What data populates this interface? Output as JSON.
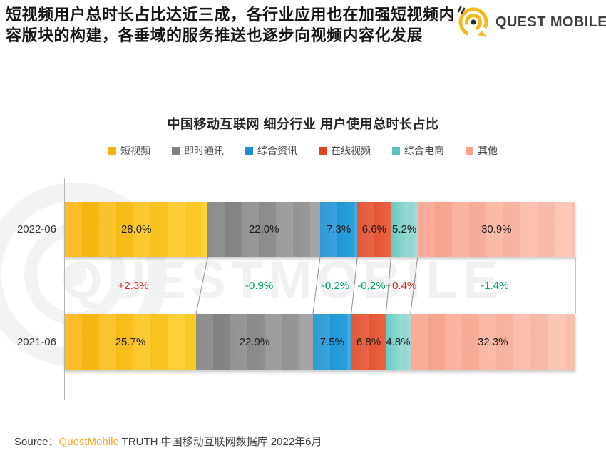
{
  "header": {
    "text": "短视频用户总时长占比达近三成，各行业应用也在加强短视频内容版块的构建，各垂域的服务推送也逐步向视频内容化发展",
    "logo_text": "QUEST MOBILE"
  },
  "chart_data": {
    "type": "bar",
    "stacked": true,
    "orientation": "horizontal",
    "title": "中国移动互联网 细分行业 用户使用总时长占比",
    "unit": "%",
    "xlim": [
      0,
      100
    ],
    "categories": [
      "2022-06",
      "2021-06"
    ],
    "legend": [
      {
        "label": "短视频",
        "color": "#f8b40e",
        "color2": "#ffce27"
      },
      {
        "label": "即时通讯",
        "color": "#7f7f7f",
        "color2": "#9c9c9c"
      },
      {
        "label": "综合资讯",
        "color": "#1a8fd1",
        "color2": "#2ba4e2"
      },
      {
        "label": "在线视频",
        "color": "#df4522",
        "color2": "#ef6545"
      },
      {
        "label": "综合电商",
        "color": "#55c4bb",
        "color2": "#abe0da"
      },
      {
        "label": "其他",
        "color": "#f9a28b",
        "color2": "#fdc3b1"
      }
    ],
    "series": [
      {
        "name": "2022-06",
        "values": [
          28.0,
          22.0,
          7.3,
          6.6,
          5.2,
          30.9
        ],
        "labels": [
          "28.0%",
          "22.0%",
          "7.3%",
          "6.6%",
          "5.2%",
          "30.9%"
        ]
      },
      {
        "name": "2021-06",
        "values": [
          25.7,
          22.9,
          7.5,
          6.8,
          4.8,
          32.3
        ],
        "labels": [
          "25.7%",
          "22.9%",
          "7.5%",
          "6.8%",
          "4.8%",
          "32.3%"
        ]
      }
    ],
    "changes": [
      {
        "label": "+2.3%",
        "direction": "up"
      },
      {
        "label": "-0.9%",
        "direction": "down"
      },
      {
        "label": "-0.2%",
        "direction": "down"
      },
      {
        "label": "-0.2%",
        "direction": "down"
      },
      {
        "label": "+0.4%",
        "direction": "up"
      },
      {
        "label": "-1.4%",
        "direction": "down"
      }
    ],
    "colors": {
      "up": "#d5281f",
      "down": "#00a05e"
    },
    "legend_position": "top",
    "grid": false
  },
  "watermark": "QUESTMOBILE",
  "footer": {
    "source_label": "Source：",
    "brand": "QuestMobile",
    "rest": " TRUTH 中国移动互联网数据库 2022年6月"
  }
}
